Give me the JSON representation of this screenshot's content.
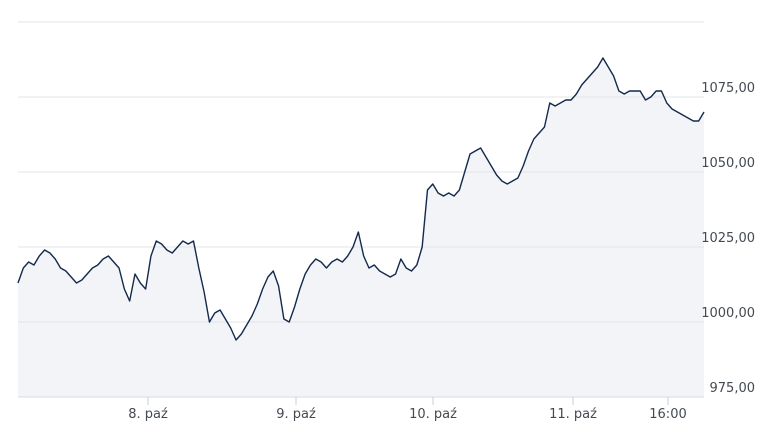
{
  "chart_data": {
    "type": "area",
    "title": "",
    "xlabel": "",
    "ylabel": "",
    "x_ticks": [
      "8. paź",
      "9. paź",
      "10. paź",
      "11. paź",
      "16:00"
    ],
    "y_ticks": [
      "975,00",
      "1000,00",
      "1025,00",
      "1050,00",
      "1075,00"
    ],
    "ylim": [
      975,
      1100
    ],
    "grid": true,
    "colors": {
      "line": "#132a4d",
      "fill": "#f3f4f7",
      "grid": "#e2e4e8"
    },
    "series": [
      {
        "values": [
          1013,
          1018,
          1020,
          1019,
          1022,
          1024,
          1023,
          1021,
          1018,
          1017,
          1015,
          1013,
          1014,
          1016,
          1018,
          1019,
          1021,
          1022,
          1020,
          1018,
          1011,
          1007,
          1016,
          1013,
          1011,
          1022,
          1027,
          1026,
          1024,
          1023,
          1025,
          1027,
          1026,
          1027,
          1018,
          1010,
          1000,
          1003,
          1004,
          1001,
          998,
          994,
          996,
          999,
          1002,
          1006,
          1011,
          1015,
          1017,
          1012,
          1001,
          1000,
          1005,
          1011,
          1016,
          1019,
          1021,
          1020,
          1018,
          1020,
          1021,
          1020,
          1022,
          1025,
          1030,
          1022,
          1018,
          1019,
          1017,
          1016,
          1015,
          1016,
          1021,
          1018,
          1017,
          1019,
          1025,
          1044,
          1046,
          1043,
          1042,
          1043,
          1042,
          1044,
          1050,
          1056,
          1057,
          1058,
          1055,
          1052,
          1049,
          1047,
          1046,
          1047,
          1048,
          1052,
          1057,
          1061,
          1063,
          1065,
          1073,
          1072,
          1073,
          1074,
          1074,
          1076,
          1079,
          1081,
          1083,
          1085,
          1088,
          1085,
          1082,
          1077,
          1076,
          1077,
          1077,
          1077,
          1074,
          1075,
          1077,
          1077,
          1073,
          1071,
          1070,
          1069,
          1068,
          1067,
          1067,
          1070
        ]
      }
    ]
  }
}
